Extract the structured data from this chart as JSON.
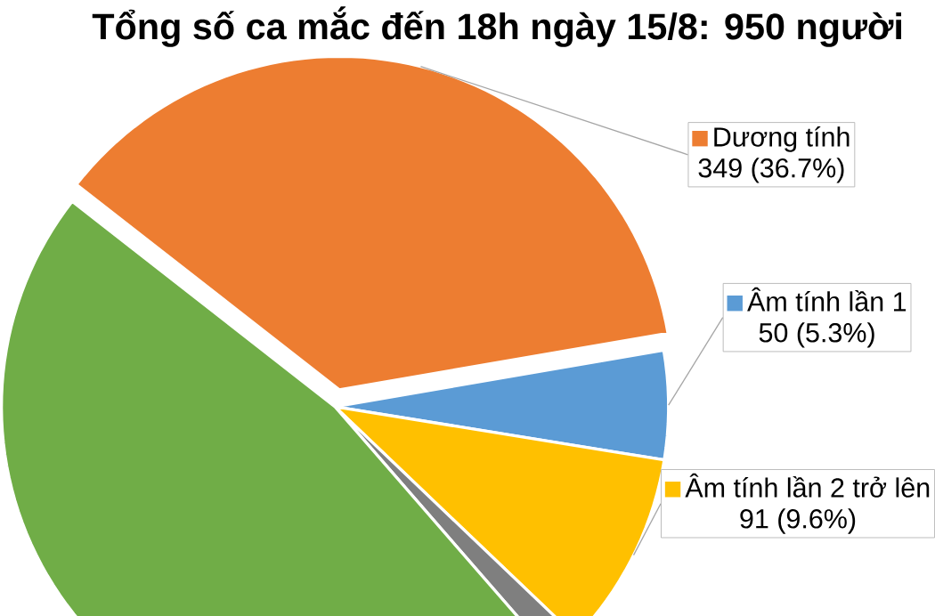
{
  "chart_data": {
    "type": "pie",
    "title": "Tổng số ca mắc đến 18h ngày 15/8: 950 người",
    "categories": [
      "Dương tính",
      "Âm tính lần 1",
      "Âm tính lần 2 trở lên",
      null,
      null
    ],
    "values": [
      349,
      50,
      91,
      14,
      446
    ],
    "colors": [
      "#ed7d31",
      "#5b9bd5",
      "#ffc000",
      "#7f7f7f",
      "#70ad47"
    ],
    "value_labels": [
      "349 (36.7%)",
      "50 (5.3%)",
      "91 (9.6%)",
      null,
      null
    ],
    "legend": "right"
  }
}
